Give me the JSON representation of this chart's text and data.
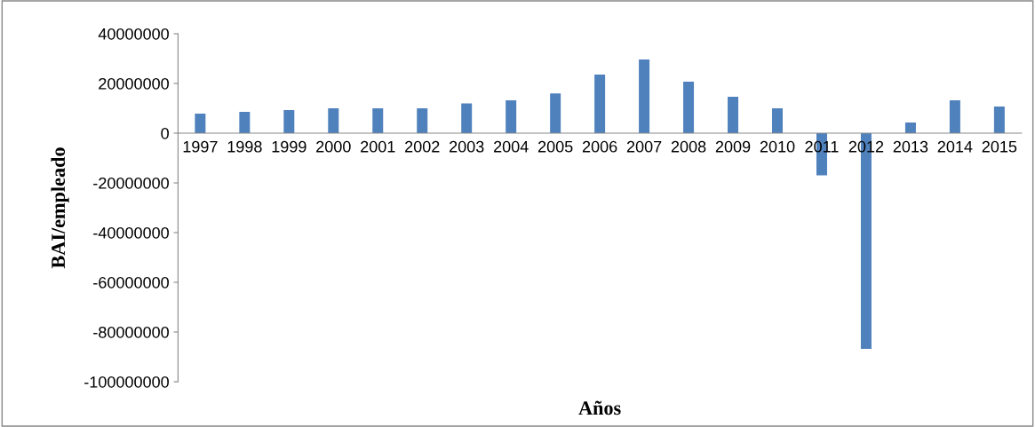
{
  "chart_data": {
    "type": "bar",
    "xlabel": "Años",
    "ylabel": "BAI/empleado",
    "categories": [
      "1997",
      "1998",
      "1999",
      "2000",
      "2001",
      "2002",
      "2003",
      "2004",
      "2005",
      "2006",
      "2007",
      "2008",
      "2009",
      "2010",
      "2011",
      "2012",
      "2013",
      "2014",
      "2015"
    ],
    "values": [
      7900000,
      8600000,
      9300000,
      10000000,
      10000000,
      10000000,
      12000000,
      13200000,
      16000000,
      23600000,
      29600000,
      20700000,
      14600000,
      10000000,
      -17000000,
      -86800000,
      4300000,
      13200000,
      10700000
    ],
    "color": "#4f81bd",
    "ylim": [
      -100000000,
      40000000
    ],
    "yticks": [
      -100000000,
      -80000000,
      -60000000,
      -40000000,
      -20000000,
      0,
      20000000,
      40000000
    ],
    "grid": false,
    "legend": false
  }
}
